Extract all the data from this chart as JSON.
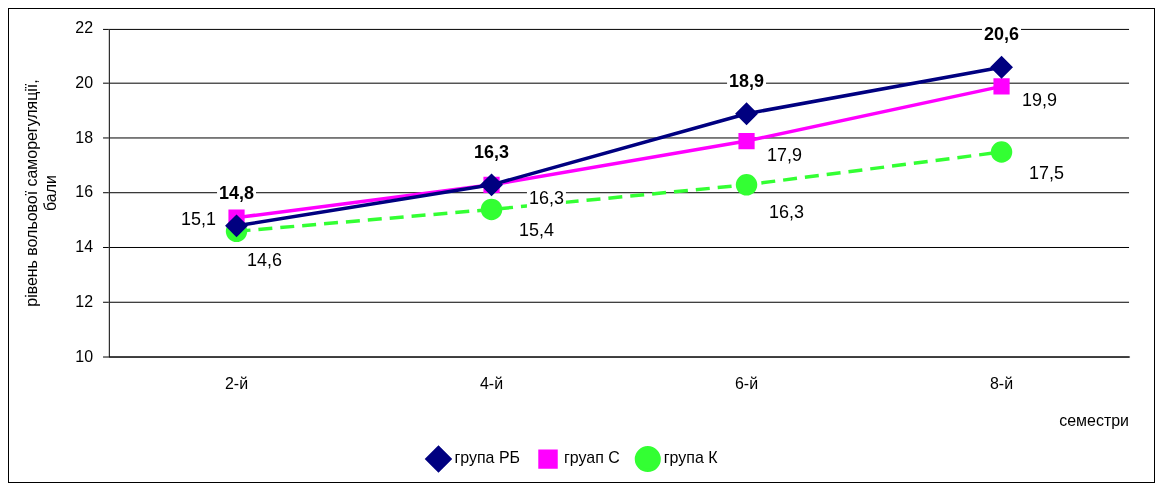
{
  "chart_data": {
    "type": "line",
    "xlabel": "семестри",
    "ylabel": "рівень вольової саморегуляції, бали",
    "categories": [
      "2-й",
      "4-й",
      "6-й",
      "8-й"
    ],
    "series": [
      {
        "name": "група РБ",
        "color": "#000080",
        "values": [
          14.8,
          16.3,
          18.9,
          20.6
        ],
        "value_labels": [
          "14,8",
          "16,3",
          "18,9",
          "20,6"
        ],
        "marker": "diamond",
        "line_style": "solid"
      },
      {
        "name": "груап С",
        "color": "#ff00ff",
        "values": [
          15.1,
          16.3,
          17.9,
          19.9
        ],
        "value_labels": [
          "15,1",
          "16,3",
          "17,9",
          "19,9"
        ],
        "marker": "square",
        "line_style": "solid"
      },
      {
        "name": "група К",
        "color": "#33ff33",
        "values": [
          14.6,
          15.4,
          16.3,
          17.5
        ],
        "value_labels": [
          "14,6",
          "15,4",
          "16,3",
          "17,5"
        ],
        "marker": "circle",
        "line_style": "dashed"
      }
    ],
    "ylim": [
      10,
      22
    ],
    "yticks": [
      10,
      12,
      14,
      16,
      18,
      20,
      22
    ],
    "grid": "y",
    "legend": "bottom"
  }
}
